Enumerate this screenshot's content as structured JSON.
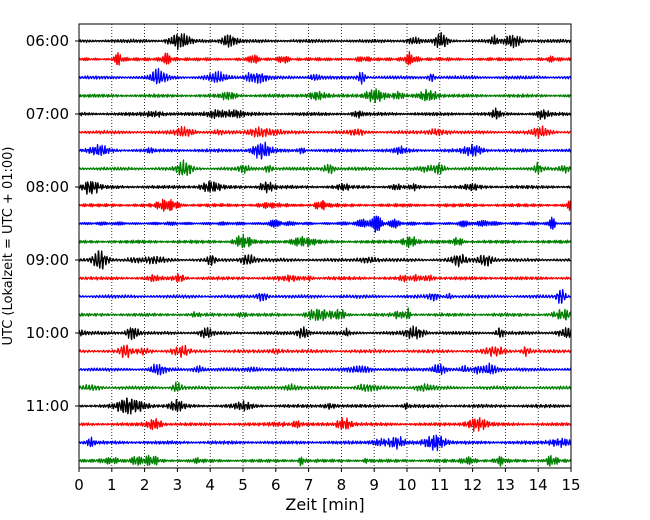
{
  "chart_data": {
    "type": "line",
    "title": "",
    "xlabel": "Zeit  [min]",
    "ylabel": "UTC (Lokalzeit = UTC + 01:00)",
    "xlim": [
      0,
      15
    ],
    "x_ticks": [
      "0",
      "1",
      "2",
      "3",
      "4",
      "5",
      "6",
      "7",
      "8",
      "9",
      "10",
      "11",
      "12",
      "13",
      "14",
      "15"
    ],
    "y_tick_labels": [
      "06:00",
      "07:00",
      "08:00",
      "09:00",
      "10:00",
      "11:00"
    ],
    "traces_per_hour": 4,
    "trace_minutes": 15,
    "trace_colors": [
      "#000000",
      "#ff0000",
      "#0000ff",
      "#008000"
    ],
    "grid": "vertical dotted lines at each minute",
    "legend": "none",
    "series": [
      {
        "start": "06:00"
      },
      {
        "start": "06:15"
      },
      {
        "start": "06:30"
      },
      {
        "start": "06:45"
      },
      {
        "start": "07:00"
      },
      {
        "start": "07:15"
      },
      {
        "start": "07:30"
      },
      {
        "start": "07:45"
      },
      {
        "start": "08:00"
      },
      {
        "start": "08:15"
      },
      {
        "start": "08:30"
      },
      {
        "start": "08:45"
      },
      {
        "start": "09:00"
      },
      {
        "start": "09:15"
      },
      {
        "start": "09:30"
      },
      {
        "start": "09:45"
      },
      {
        "start": "10:00"
      },
      {
        "start": "10:15"
      },
      {
        "start": "10:30"
      },
      {
        "start": "10:45"
      },
      {
        "start": "11:00"
      },
      {
        "start": "11:15"
      },
      {
        "start": "11:30"
      },
      {
        "start": "11:45"
      }
    ]
  }
}
